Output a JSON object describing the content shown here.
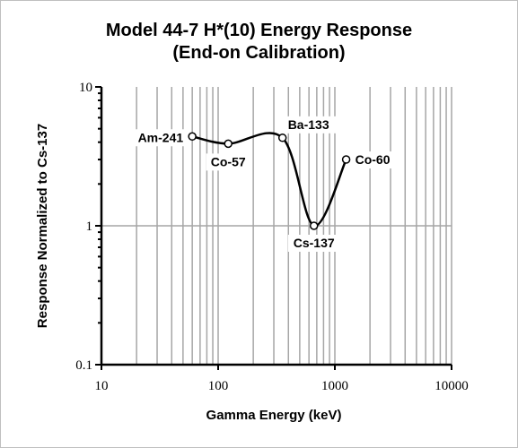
{
  "chart_data": {
    "type": "line",
    "title_line1": "Model 44-7 H*(10) Energy Response",
    "title_line2": "(End-on Calibration)",
    "xlabel": "Gamma Energy (keV)",
    "ylabel": "Response Normalized to Cs-137",
    "x_scale": "log",
    "y_scale": "log",
    "xlim": [
      10,
      10000
    ],
    "ylim": [
      0.1,
      10
    ],
    "x_ticks": [
      "10",
      "100",
      "1000",
      "10000"
    ],
    "y_ticks": [
      "0.1",
      "1",
      "10"
    ],
    "grid": "vertical minor and major lines, horizontal line at 1",
    "series": [
      {
        "points": [
          {
            "label": "Am-241",
            "x": 60,
            "y": 4.4
          },
          {
            "label": "Co-57",
            "x": 122,
            "y": 3.9
          },
          {
            "label": "Ba-133",
            "x": 356,
            "y": 4.3
          },
          {
            "label": "Cs-137",
            "x": 662,
            "y": 1.0
          },
          {
            "label": "Co-60",
            "x": 1250,
            "y": 3.0
          }
        ]
      }
    ]
  }
}
